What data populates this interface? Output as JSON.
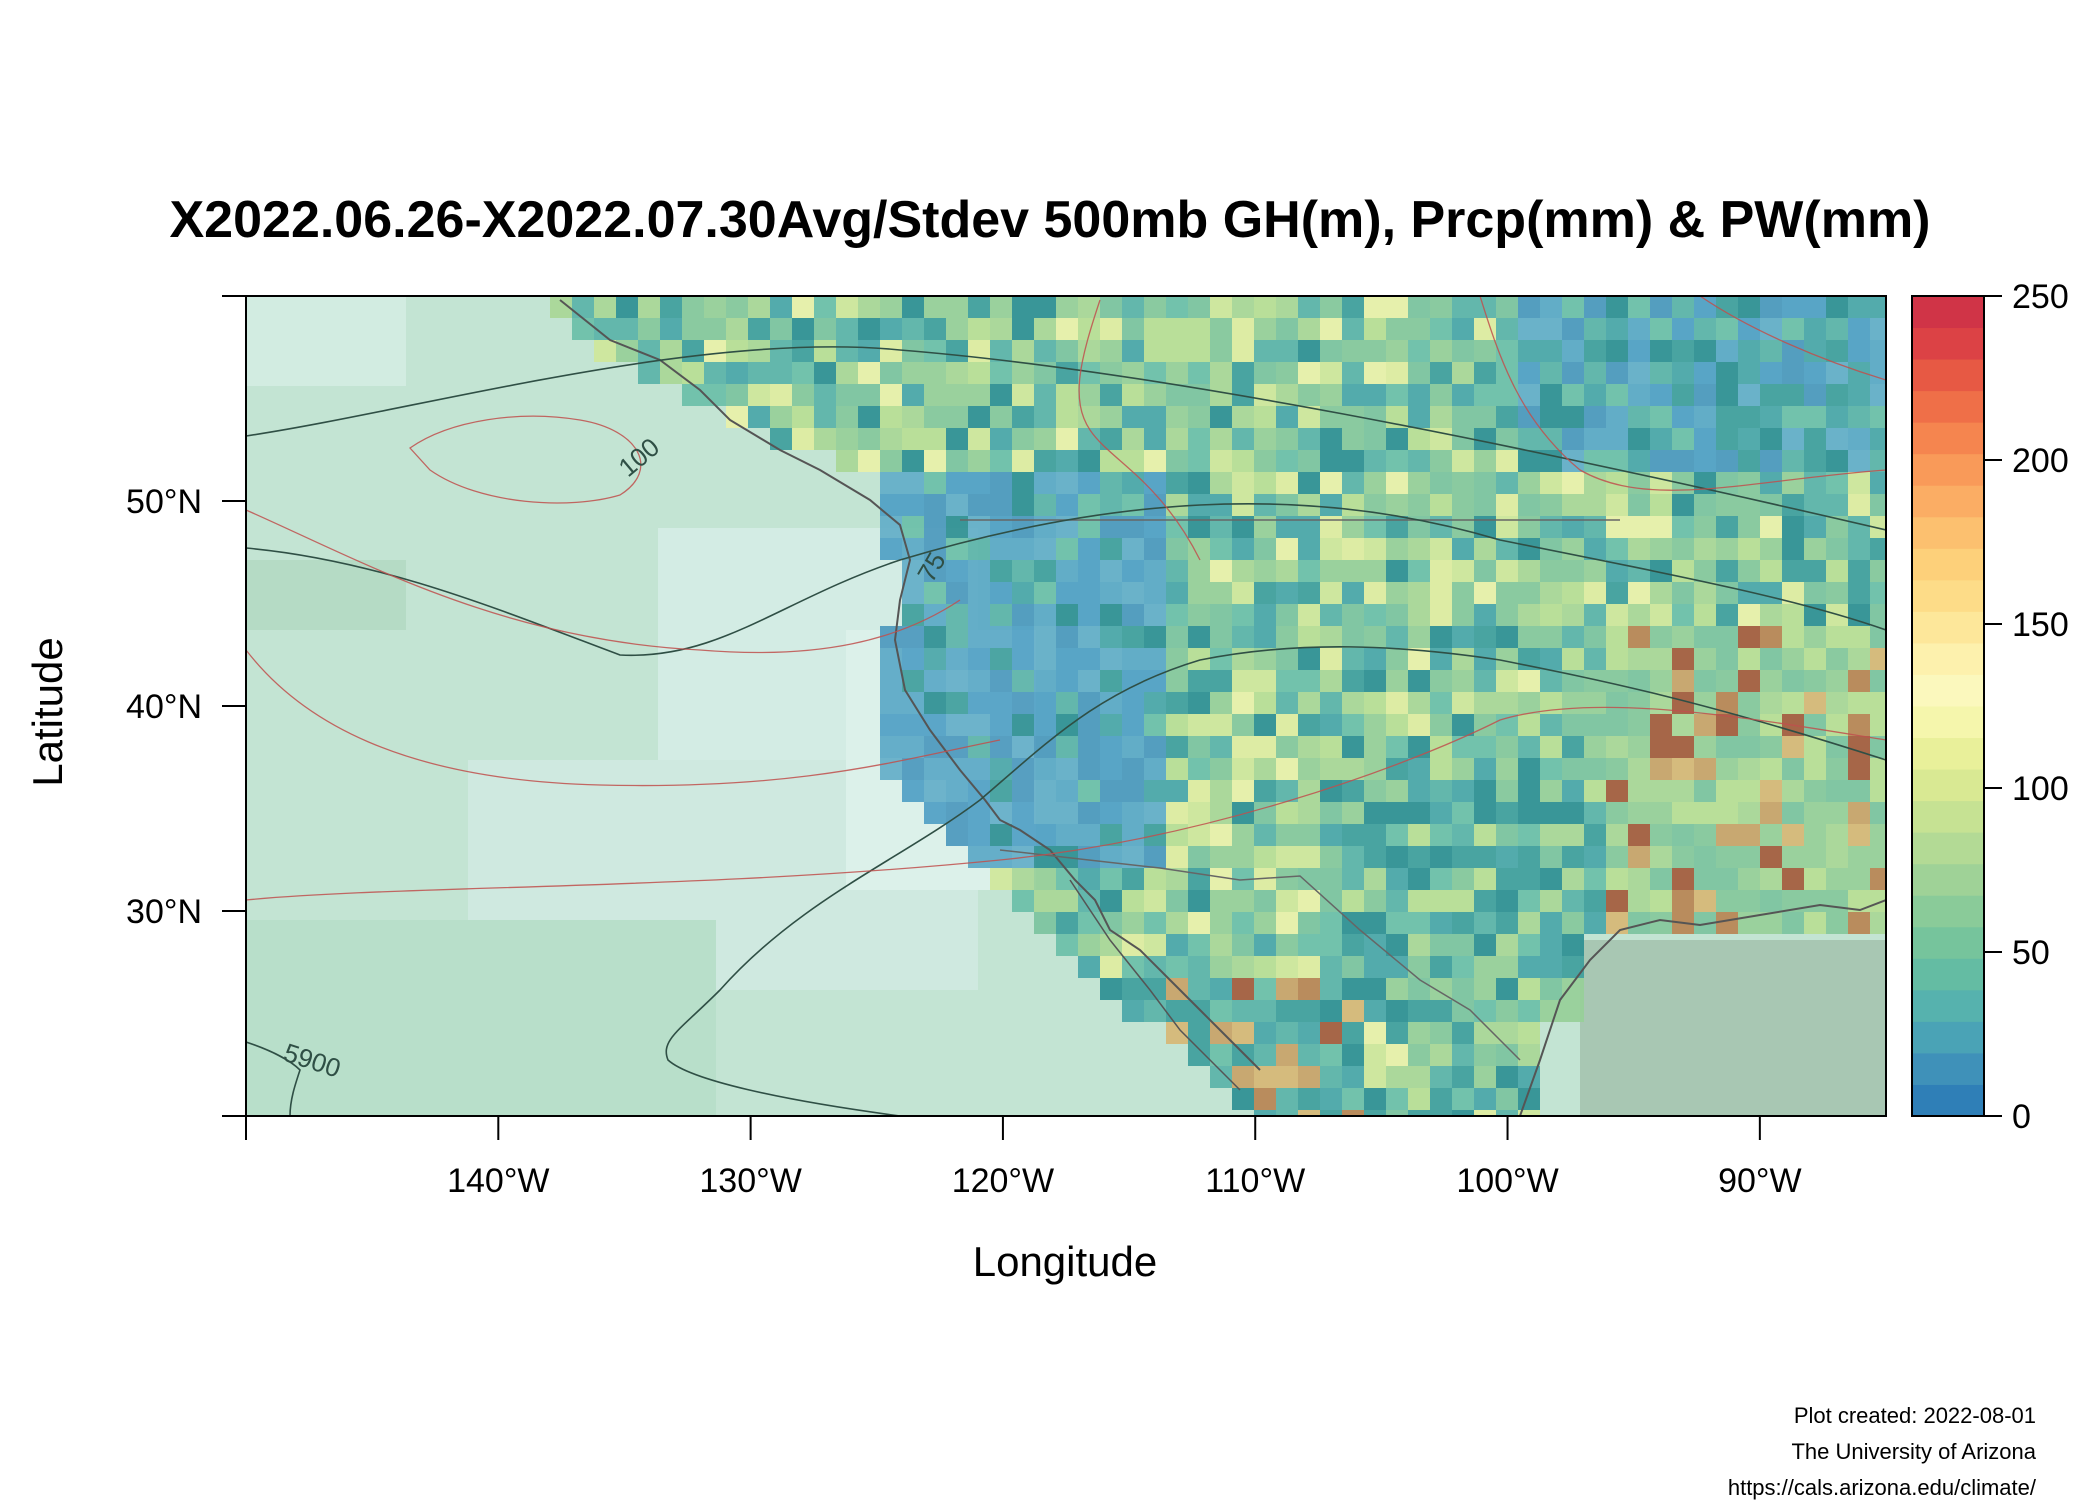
{
  "title": "X2022.06.26-X2022.07.30Avg/Stdev 500mb GH(m), Prcp(mm) & PW(mm)",
  "x_axis": {
    "label": "Longitude",
    "ticks": [
      "140°W",
      "130°W",
      "120°W",
      "110°W",
      "100°W",
      "90°W"
    ],
    "tick_values": [
      -140,
      -130,
      -120,
      -110,
      -100,
      -90
    ],
    "range": [
      -150,
      -85
    ]
  },
  "y_axis": {
    "label": "Latitude",
    "ticks": [
      "30°N",
      "40°N",
      "50°N"
    ],
    "tick_values": [
      30,
      40,
      50
    ],
    "range": [
      20,
      60
    ]
  },
  "colorbar": {
    "ticks": [
      "0",
      "50",
      "100",
      "150",
      "200",
      "250"
    ],
    "tick_values": [
      0,
      50,
      100,
      150,
      200,
      250
    ],
    "range": [
      0,
      250
    ],
    "colors": [
      "#2f7fb7",
      "#3f91b9",
      "#4aa3b6",
      "#56b2ae",
      "#64bca3",
      "#76c49c",
      "#8acb99",
      "#9fd297",
      "#b3da95",
      "#c6e293",
      "#d9e993",
      "#e9f09a",
      "#f5f6ac",
      "#fbf8bd",
      "#fdf1ad",
      "#fde79a",
      "#fddc88",
      "#fdd07a",
      "#fcc06f",
      "#fbad64",
      "#f99a59",
      "#f5854f",
      "#ef6f48",
      "#e75944",
      "#dc4245",
      "#d03447"
    ]
  },
  "contour_labels": [
    "100",
    "75",
    "5900"
  ],
  "credits": [
    "Plot created: 2022-08-01",
    "The University of Arizona",
    "https://cals.arizona.edu/climate/"
  ]
}
